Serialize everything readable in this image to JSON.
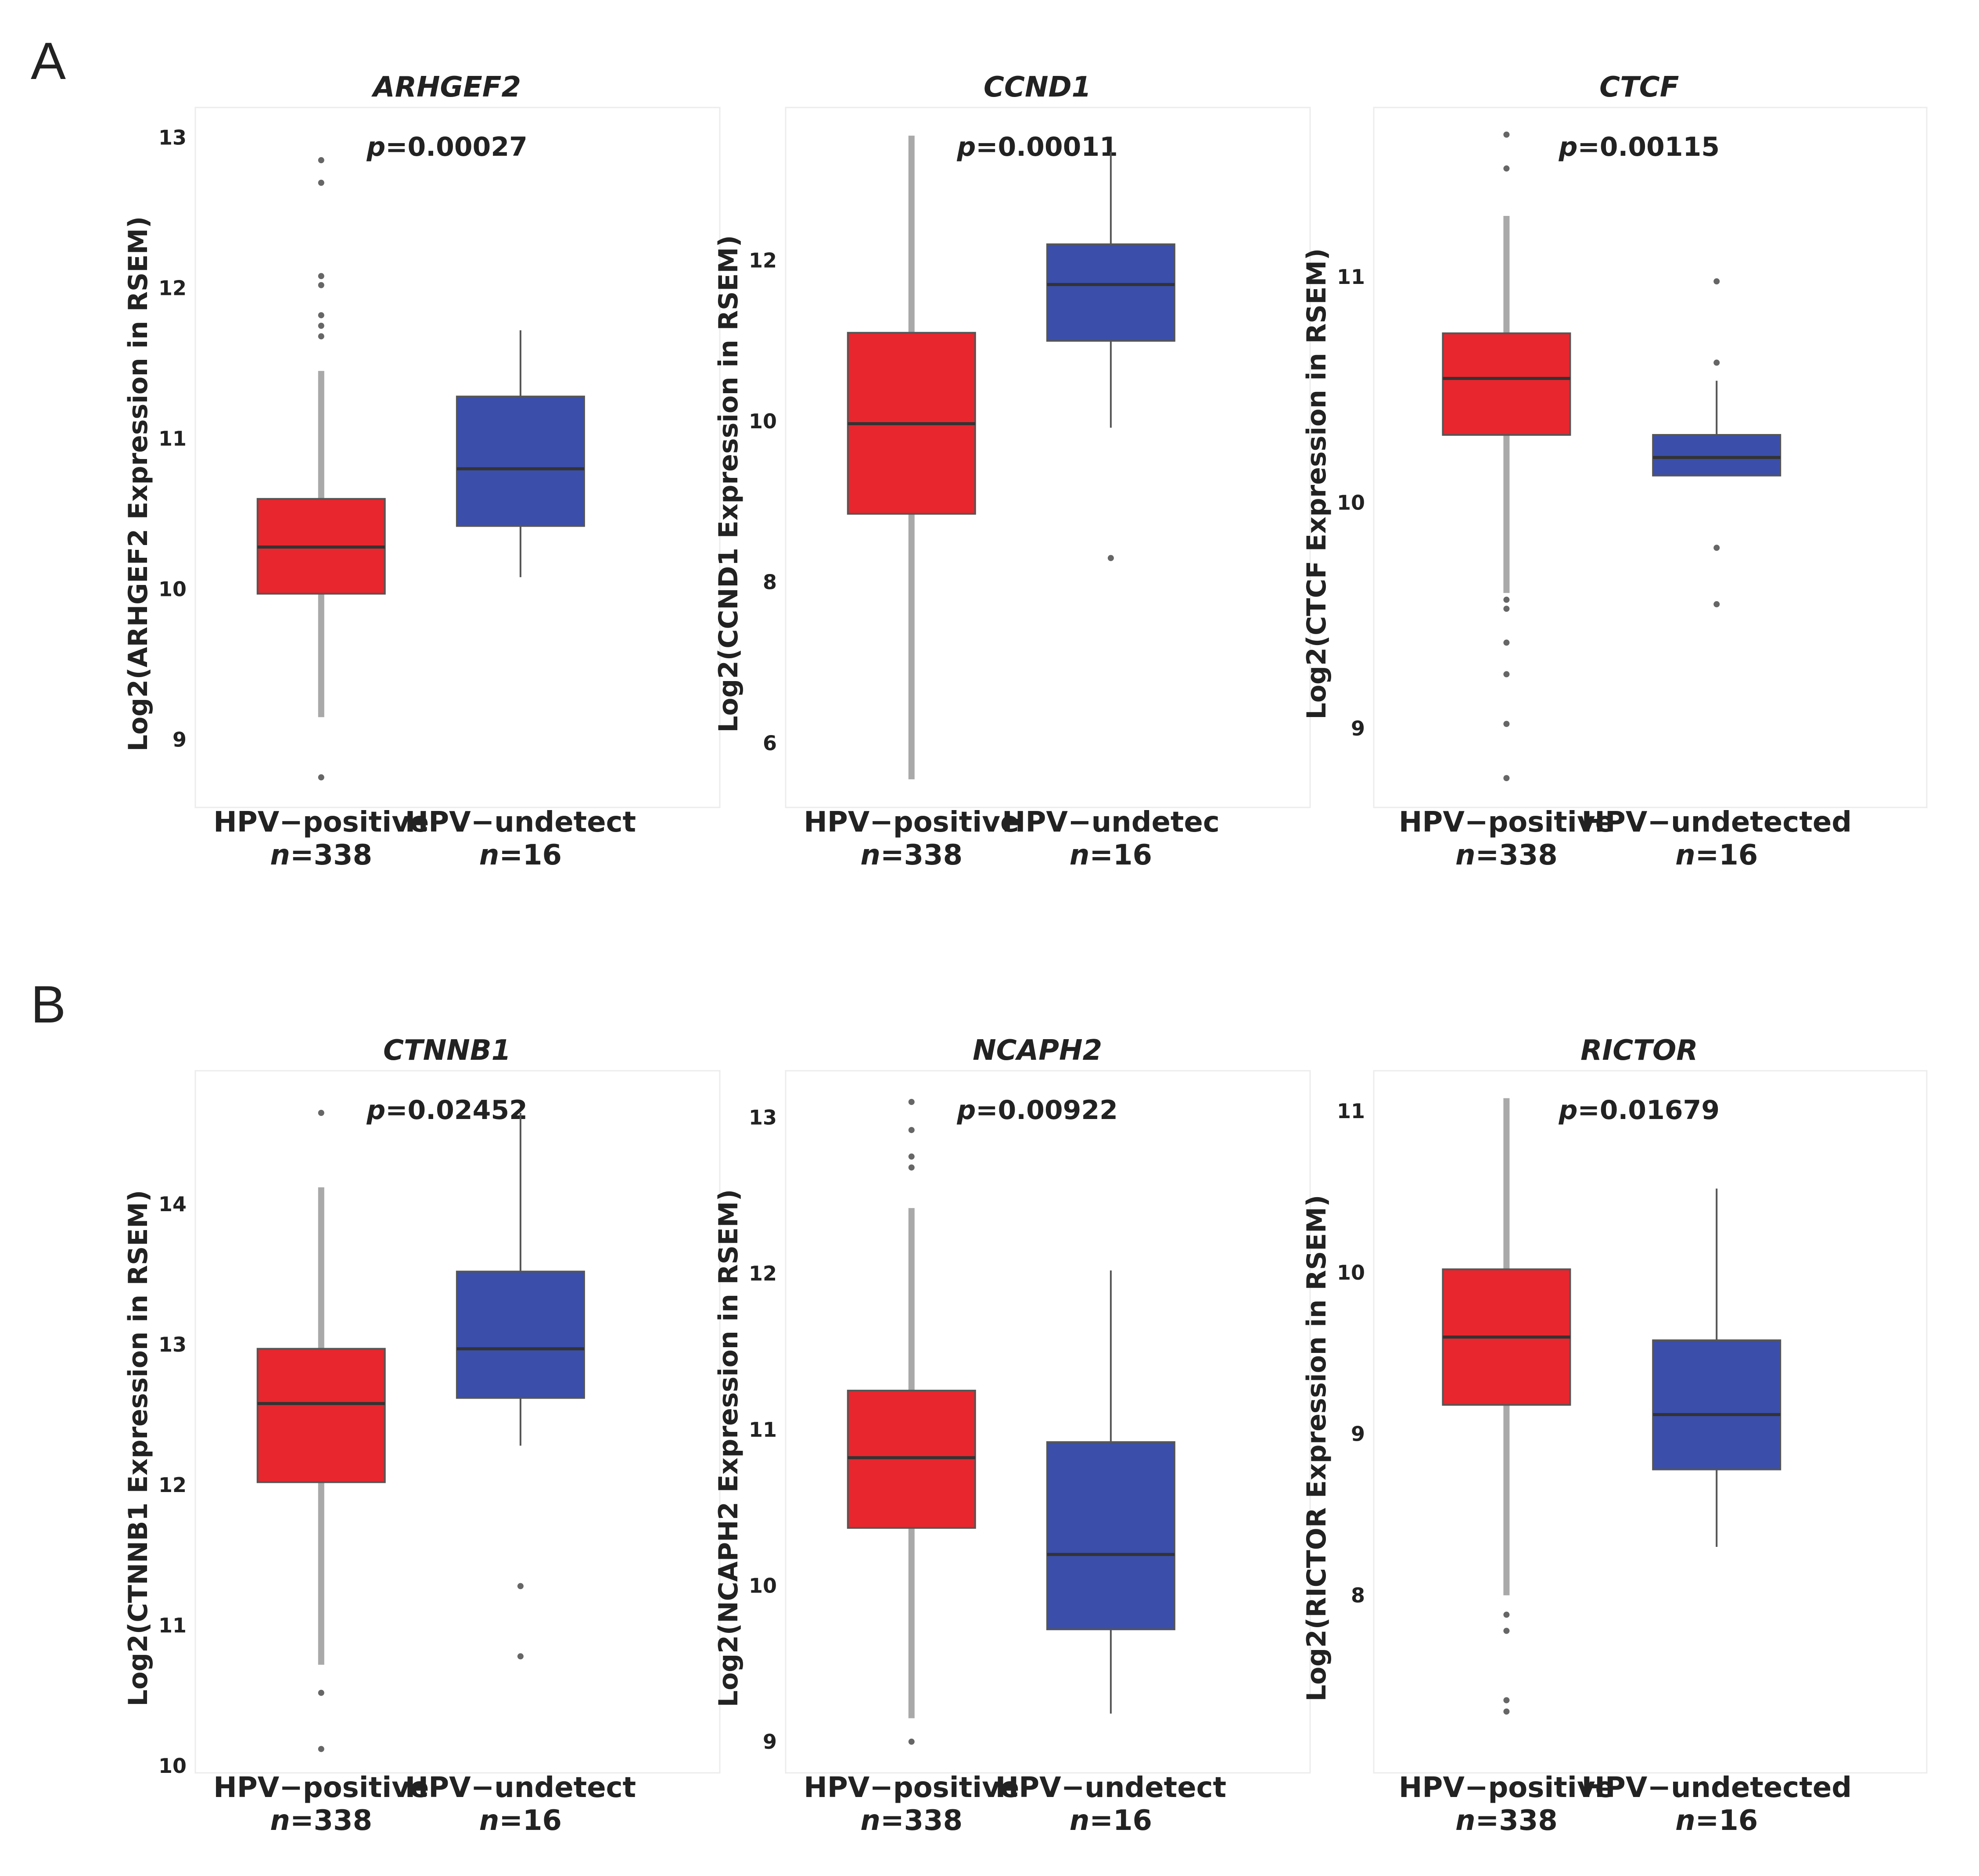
{
  "panel_labels": [
    "A",
    "B"
  ],
  "groups": [
    "HPV−positive",
    "HPV−undetected"
  ],
  "group_counts": [
    "n=338",
    "n=16"
  ],
  "colors": {
    "positive": "#e8262d",
    "undetected": "#3a4eaa"
  },
  "chart_data": [
    {
      "type": "box",
      "panel": "A",
      "gene": "ARHGEF2",
      "pvalue": "p=0.00027",
      "title": "ARHGEF2",
      "ylabel": "Log2(ARHGEF2 Expression in RSEM)",
      "ylim": [
        8.55,
        13.2
      ],
      "yticks": [
        9,
        10,
        11,
        12,
        13
      ],
      "xlabels": [
        "HPV−positive",
        "HPV−undetect"
      ],
      "counts": [
        "n=338",
        "n=16"
      ],
      "series": [
        {
          "name": "HPV-positive",
          "whislo": 9.15,
          "q1": 9.97,
          "med": 10.28,
          "q3": 10.6,
          "whishi": 11.45,
          "fliers": [
            8.75,
            11.68,
            11.75,
            11.82,
            12.02,
            12.08,
            12.7,
            12.85
          ]
        },
        {
          "name": "HPV-undetected",
          "whislo": 10.08,
          "q1": 10.42,
          "med": 10.8,
          "q3": 11.28,
          "whishi": 11.72,
          "fliers": []
        }
      ]
    },
    {
      "type": "box",
      "panel": "A",
      "gene": "CCND1",
      "pvalue": "p=0.00011",
      "title": "CCND1",
      "ylabel": "Log2(CCND1 Expression in RSEM)",
      "ylim": [
        5.2,
        13.9
      ],
      "yticks": [
        6,
        8,
        10,
        12
      ],
      "xlabels": [
        "HPV−positive",
        "HPV−undetec"
      ],
      "counts": [
        "n=338",
        "n=16"
      ],
      "series": [
        {
          "name": "HPV-positive",
          "whislo": 5.55,
          "q1": 8.85,
          "med": 9.97,
          "q3": 11.1,
          "whishi": 13.55,
          "fliers": []
        },
        {
          "name": "HPV-undetected",
          "whislo": 9.92,
          "q1": 11,
          "med": 11.7,
          "q3": 12.2,
          "whishi": 13.35,
          "fliers": [
            8.3
          ]
        }
      ]
    },
    {
      "type": "box",
      "panel": "A",
      "gene": "CTCF",
      "pvalue": "p=0.00115",
      "title": "CTCF",
      "ylabel": "Log2(CTCF Expression in RSEM)",
      "ylim": [
        8.65,
        11.75
      ],
      "yticks": [
        9,
        10,
        11
      ],
      "xlabels": [
        "HPV−positive",
        "HPV−undetected"
      ],
      "counts": [
        "n=338",
        "n=16"
      ],
      "series": [
        {
          "name": "HPV-positive",
          "whislo": 9.6,
          "q1": 10.3,
          "med": 10.55,
          "q3": 10.75,
          "whishi": 11.27,
          "fliers": [
            8.78,
            9.02,
            9.24,
            9.38,
            9.53,
            9.57,
            11.48,
            11.63
          ]
        },
        {
          "name": "HPV-undetected",
          "whislo": 10.12,
          "q1": 10.12,
          "med": 10.2,
          "q3": 10.3,
          "whishi": 10.54,
          "fliers": [
            9.55,
            9.8,
            10.62,
            10.98
          ]
        }
      ]
    },
    {
      "type": "box",
      "panel": "B",
      "gene": "CTNNB1",
      "pvalue": "p=0.02452",
      "title": "CTNNB1",
      "ylabel": "Log2(CTNNB1 Expression in RSEM)",
      "ylim": [
        9.95,
        14.95
      ],
      "yticks": [
        10,
        11,
        12,
        13,
        14
      ],
      "xlabels": [
        "HPV−positive",
        "HPV−undetect"
      ],
      "counts": [
        "n=338",
        "n=16"
      ],
      "series": [
        {
          "name": "HPV-positive",
          "whislo": 10.72,
          "q1": 12.02,
          "med": 12.58,
          "q3": 12.97,
          "whishi": 14.12,
          "fliers": [
            10.12,
            10.52,
            14.65
          ]
        },
        {
          "name": "HPV-undetected",
          "whislo": 12.28,
          "q1": 12.62,
          "med": 12.97,
          "q3": 13.52,
          "whishi": 14.65,
          "fliers": [
            10.78,
            11.28
          ]
        }
      ]
    },
    {
      "type": "box",
      "panel": "B",
      "gene": "NCAPH2",
      "pvalue": "p=0.00922",
      "title": "NCAPH2",
      "ylabel": "Log2(NCAPH2 Expression in RSEM)",
      "ylim": [
        8.8,
        13.3
      ],
      "yticks": [
        9,
        10,
        11,
        12,
        13
      ],
      "xlabels": [
        "HPV−positive",
        "HPV−undetect"
      ],
      "counts": [
        "n=338",
        "n=16"
      ],
      "series": [
        {
          "name": "HPV-positive",
          "whislo": 9.15,
          "q1": 10.37,
          "med": 10.82,
          "q3": 11.25,
          "whishi": 12.42,
          "fliers": [
            9.0,
            12.68,
            12.75,
            12.92,
            13.1
          ]
        },
        {
          "name": "HPV-undetected",
          "whislo": 9.18,
          "q1": 9.72,
          "med": 10.2,
          "q3": 10.92,
          "whishi": 12.02,
          "fliers": []
        }
      ]
    },
    {
      "type": "box",
      "panel": "B",
      "gene": "RICTOR",
      "pvalue": "p=0.01679",
      "title": "RICTOR",
      "ylabel": "Log2(RICTOR Expression in RSEM)",
      "ylim": [
        6.9,
        11.25
      ],
      "yticks": [
        8,
        9,
        10,
        11
      ],
      "xlabels": [
        "HPV−positive",
        "HPV−undetected"
      ],
      "counts": [
        "n=338",
        "n=16"
      ],
      "series": [
        {
          "name": "HPV-positive",
          "whislo": 8.0,
          "q1": 9.18,
          "med": 9.6,
          "q3": 10.02,
          "whishi": 11.08,
          "fliers": [
            7.28,
            7.35,
            7.78,
            7.88
          ]
        },
        {
          "name": "HPV-undetected",
          "whislo": 8.3,
          "q1": 8.78,
          "med": 9.12,
          "q3": 9.58,
          "whishi": 10.52,
          "fliers": []
        }
      ]
    }
  ]
}
